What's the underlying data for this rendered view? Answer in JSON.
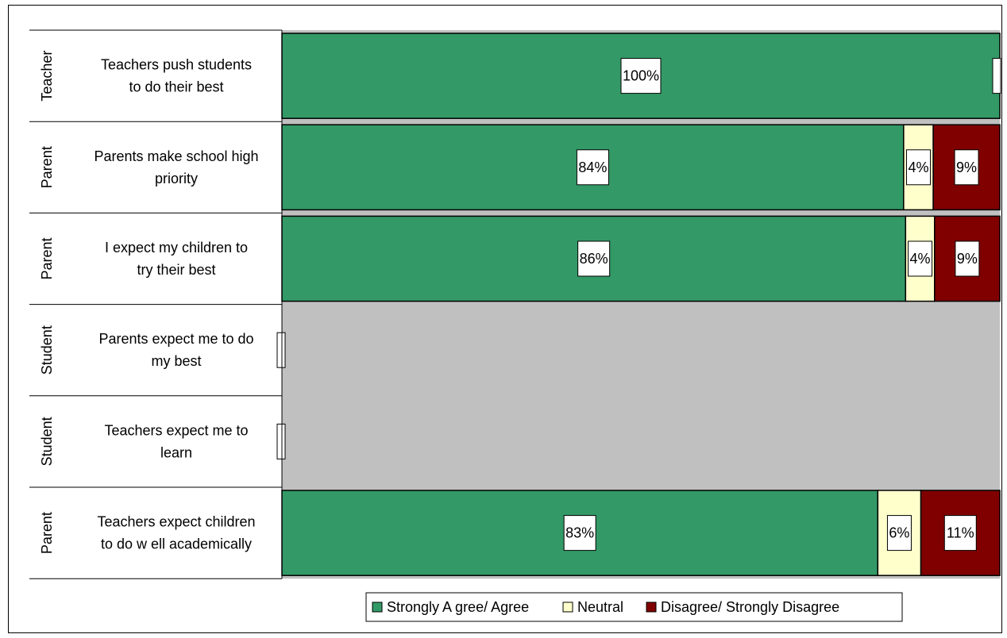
{
  "chart_data": {
    "type": "bar",
    "orientation": "horizontal",
    "stacked": true,
    "normalized": true,
    "title": "",
    "xlabel": "",
    "ylabel": "",
    "xlim": [
      0,
      100
    ],
    "grid": false,
    "legend_position": "bottom",
    "categories": [
      {
        "group": "Teacher",
        "label": "Teachers push students to do their best",
        "lines": [
          "Teachers push students",
          "to do their best"
        ]
      },
      {
        "group": "Parent",
        "label": "Parents make school high priority",
        "lines": [
          "Parents make school high",
          "priority"
        ]
      },
      {
        "group": "Parent",
        "label": "I expect my children to try their best",
        "lines": [
          "I expect my children to",
          "try their best"
        ]
      },
      {
        "group": "Student",
        "label": "Parents expect me to do my best",
        "lines": [
          "Parents expect me to do",
          "my best"
        ]
      },
      {
        "group": "Student",
        "label": "Teachers expect me to learn",
        "lines": [
          "Teachers expect me to",
          "learn"
        ]
      },
      {
        "group": "Parent",
        "label": "Teachers expect children to do w ell academically",
        "lines": [
          "Teachers expect children",
          "to do w ell academically"
        ]
      }
    ],
    "series": [
      {
        "name": "Strongly A gree/ Agree",
        "color": "#339966",
        "values": [
          100,
          84,
          86,
          null,
          null,
          83
        ]
      },
      {
        "name": "Neutral",
        "color": "#FFFFCC",
        "values": [
          0,
          4,
          4,
          null,
          null,
          6
        ]
      },
      {
        "name": "Disagree/ Strongly Disagree",
        "color": "#800000",
        "values": [
          0,
          9,
          9,
          null,
          null,
          11
        ]
      }
    ],
    "data_labels": [
      [
        "100%",
        "",
        ""
      ],
      [
        "84%",
        "4%",
        "9%"
      ],
      [
        "86%",
        "4%",
        "9%"
      ],
      [
        "",
        "",
        ""
      ],
      [
        "",
        "",
        ""
      ],
      [
        "83%",
        "6%",
        "11%"
      ]
    ]
  },
  "colors": {
    "plot_background": "#C0C0C0",
    "bar_outline": "#000000"
  }
}
